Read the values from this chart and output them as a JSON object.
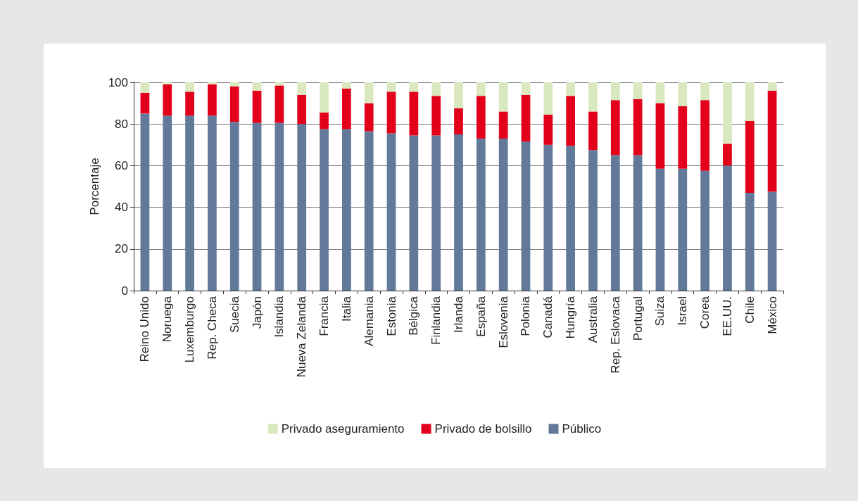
{
  "chart_data": {
    "type": "bar",
    "stacked": true,
    "ylabel": "Porcentaje",
    "categories": [
      "Reino Unido",
      "Noruega",
      "Luxemburgo",
      "Rep. Checa",
      "Suecia",
      "Japón",
      "Islandia",
      "Nueva Zelanda",
      "Francia",
      "Italia",
      "Alemania",
      "Estonia",
      "Bélgica",
      "Finlandia",
      "Irlanda",
      "España",
      "Eslovenia",
      "Polonia",
      "Canadá",
      "Hungría",
      "Australia",
      "Rep. Eslovaca",
      "Portugal",
      "Suiza",
      "Israel",
      "Corea",
      "EE.UU.",
      "Chile",
      "México"
    ],
    "series": [
      {
        "name": "Público",
        "color": "#62799a",
        "values": [
          85,
          84,
          84,
          84,
          81,
          80.5,
          80.5,
          80,
          77.5,
          77.5,
          76.5,
          75.5,
          74.5,
          74.5,
          75,
          73,
          73,
          71.5,
          70,
          69.5,
          67.5,
          65,
          65,
          58.5,
          58.5,
          57.5,
          60,
          47,
          47.5
        ]
      },
      {
        "name": "Privado de bolsillo",
        "color": "#e2001a",
        "values": [
          10,
          15,
          11.5,
          15,
          17,
          15.5,
          18,
          14,
          8,
          19.5,
          13.5,
          20,
          21,
          19,
          12.5,
          20.5,
          13,
          22.5,
          14.5,
          24,
          18.5,
          26.5,
          27,
          31.5,
          30,
          34,
          10.5,
          34.5,
          48.5
        ]
      },
      {
        "name": "Privado aseguramiento",
        "color": "#d9e8be",
        "values": [
          5,
          1,
          4.5,
          1,
          2,
          4,
          1.5,
          6,
          14.5,
          3,
          10,
          4.5,
          4.5,
          6.5,
          12.5,
          6.5,
          14,
          6,
          15.5,
          6.5,
          14,
          8.5,
          8,
          10,
          11.5,
          8.5,
          29.5,
          18.5,
          4
        ]
      }
    ],
    "ylim": [
      0,
      100
    ],
    "yticks": [
      0,
      20,
      40,
      60,
      80,
      100
    ],
    "grid": "y",
    "legend": "bottom"
  }
}
